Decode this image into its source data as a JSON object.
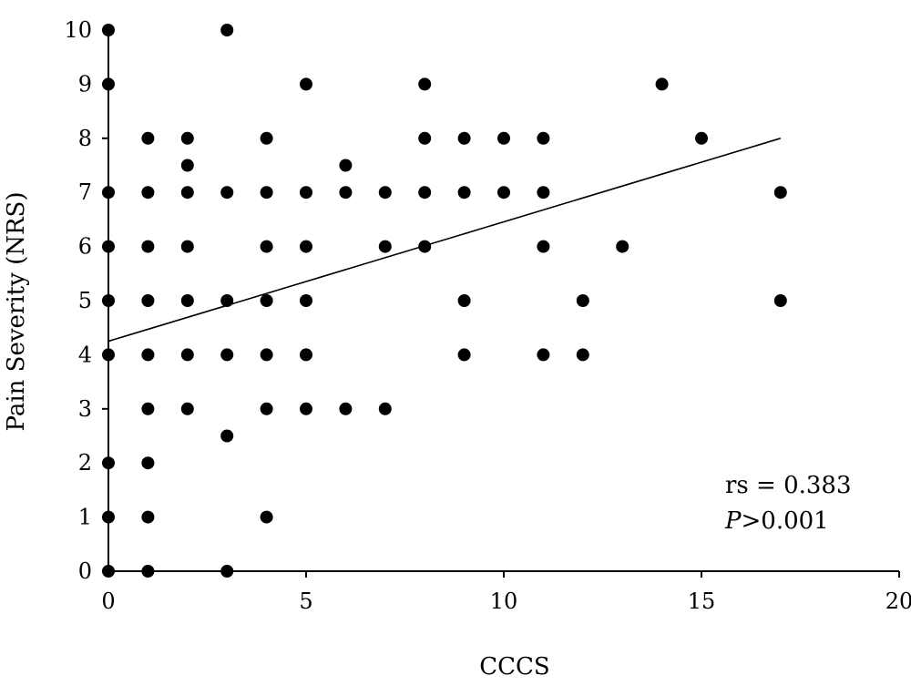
{
  "chart_data": {
    "type": "scatter",
    "title": "",
    "xlabel": "CCCS",
    "ylabel": "Pain Severity (NRS)",
    "xlim": [
      0,
      20
    ],
    "ylim": [
      0,
      10
    ],
    "xticks": [
      "0",
      "5",
      "10",
      "15",
      "20"
    ],
    "yticks": [
      "0",
      "1",
      "2",
      "3",
      "4",
      "5",
      "6",
      "7",
      "8",
      "9",
      "10"
    ],
    "grid": false,
    "legend": "none",
    "colors": {
      "points": "#000000",
      "line": "#000000",
      "axes": "#000000"
    },
    "series": [
      {
        "points": [
          [
            0,
            10
          ],
          [
            0,
            9
          ],
          [
            0,
            7
          ],
          [
            0,
            6
          ],
          [
            0,
            5
          ],
          [
            0,
            4
          ],
          [
            0,
            2
          ],
          [
            0,
            1
          ],
          [
            0,
            0
          ],
          [
            1,
            8
          ],
          [
            1,
            7
          ],
          [
            1,
            6
          ],
          [
            1,
            5
          ],
          [
            1,
            4
          ],
          [
            1,
            3
          ],
          [
            1,
            2
          ],
          [
            1,
            1
          ],
          [
            1,
            0
          ],
          [
            2,
            8
          ],
          [
            2,
            7.5
          ],
          [
            2,
            7
          ],
          [
            2,
            6
          ],
          [
            2,
            5
          ],
          [
            2,
            4
          ],
          [
            2,
            3
          ],
          [
            3,
            10
          ],
          [
            3,
            7
          ],
          [
            3,
            5
          ],
          [
            3,
            4
          ],
          [
            3,
            2.5
          ],
          [
            3,
            0
          ],
          [
            4,
            8
          ],
          [
            4,
            7
          ],
          [
            4,
            6
          ],
          [
            4,
            5
          ],
          [
            4,
            4
          ],
          [
            4,
            3
          ],
          [
            4,
            1
          ],
          [
            5,
            9
          ],
          [
            5,
            7
          ],
          [
            5,
            6
          ],
          [
            5,
            5
          ],
          [
            5,
            4
          ],
          [
            5,
            3
          ],
          [
            6,
            7.5
          ],
          [
            6,
            7
          ],
          [
            6,
            3
          ],
          [
            7,
            7
          ],
          [
            7,
            6
          ],
          [
            7,
            3
          ],
          [
            8,
            9
          ],
          [
            8,
            8
          ],
          [
            8,
            7
          ],
          [
            8,
            6
          ],
          [
            9,
            8
          ],
          [
            9,
            7
          ],
          [
            9,
            5
          ],
          [
            9,
            4
          ],
          [
            10,
            8
          ],
          [
            10,
            7
          ],
          [
            11,
            8
          ],
          [
            11,
            7
          ],
          [
            11,
            6
          ],
          [
            11,
            4
          ],
          [
            12,
            5
          ],
          [
            12,
            4
          ],
          [
            13,
            6
          ],
          [
            14,
            9
          ],
          [
            15,
            8
          ],
          [
            17,
            7
          ],
          [
            17,
            5
          ]
        ]
      }
    ],
    "trendline": {
      "x": [
        0,
        17
      ],
      "y": [
        4.25,
        8.0
      ]
    },
    "annotations": {
      "rs": "rs = 0.383",
      "p_letter": "P",
      "p_rest": ">0.001"
    }
  }
}
